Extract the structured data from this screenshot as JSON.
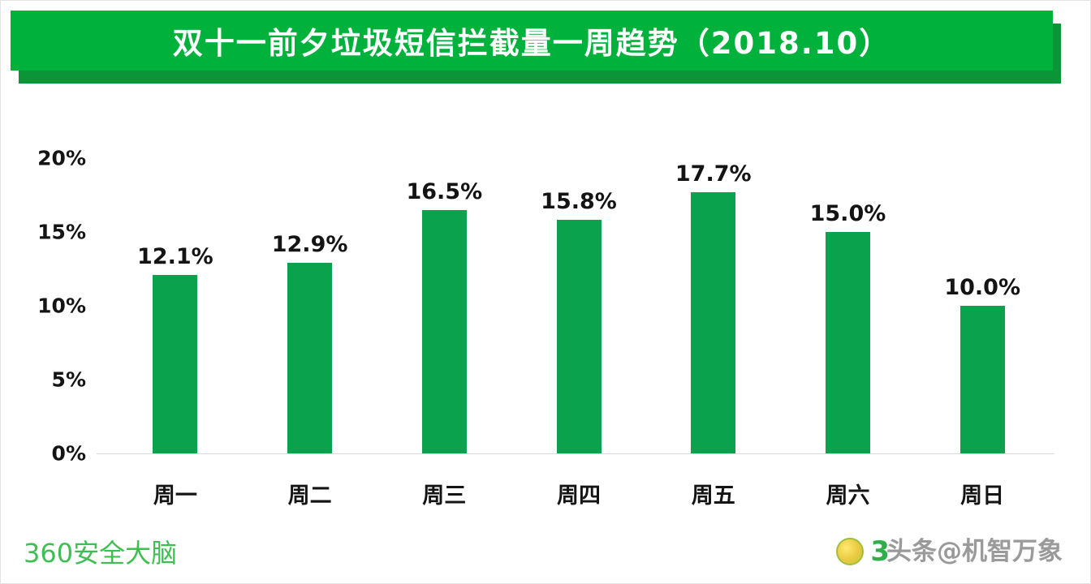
{
  "header": {
    "title": "双十一前夕垃圾短信拦截量一周趋势（2018.10）"
  },
  "chart_data": {
    "type": "bar",
    "title": "双十一前夕垃圾短信拦截量一周趋势（2018.10）",
    "categories": [
      "周一",
      "周二",
      "周三",
      "周四",
      "周五",
      "周六",
      "周日"
    ],
    "values": [
      12.1,
      12.9,
      16.5,
      15.8,
      17.7,
      15.0,
      10.0
    ],
    "data_labels": [
      "12.1%",
      "12.9%",
      "16.5%",
      "15.8%",
      "17.7%",
      "15.0%",
      "10.0%"
    ],
    "xlabel": "",
    "ylabel": "",
    "ylim": [
      0,
      20
    ],
    "yticks": [
      "20%",
      "15%",
      "10%",
      "5%",
      "0%"
    ],
    "grid": false,
    "legend": "none",
    "bar_color": "#0ba24e"
  },
  "footer": {
    "brand": "360安全大脑",
    "logo": "360-badge-icon",
    "brand_fragment": "3",
    "watermark": "头条@机智万象"
  },
  "colors": {
    "header_green": "#00b13c",
    "header_shadow_green": "#0a9637",
    "bar_green": "#0ba24e",
    "brand_green": "#3fbf51",
    "watermark_gray": "#9a9a9a"
  }
}
